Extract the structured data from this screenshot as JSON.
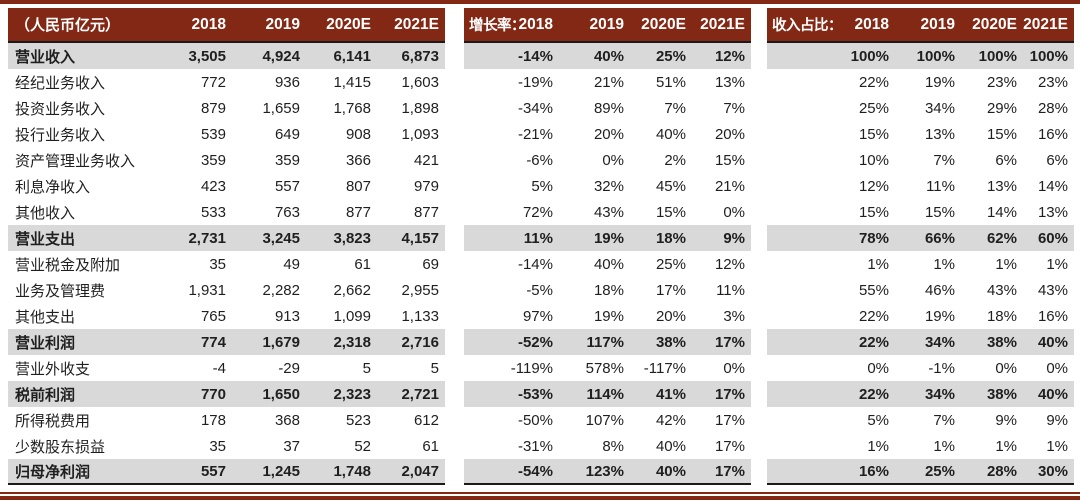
{
  "colors": {
    "header_maroon": "#822814",
    "band_gray": "#d9d9d9",
    "rule_dark": "#1a1a1a",
    "header_text": "#ffffff",
    "body_text": "#1f1f1f"
  },
  "sections": {
    "amounts": {
      "title": "（人民币亿元）",
      "years": [
        "2018",
        "2019",
        "2020E",
        "2021E"
      ]
    },
    "growth": {
      "title": "增长率：",
      "years": [
        "2018",
        "2019",
        "2020E",
        "2021E"
      ]
    },
    "share": {
      "title": "收入占比：",
      "years": [
        "2018",
        "2019",
        "2020E",
        "2021E"
      ]
    }
  },
  "rows": [
    {
      "label": "营业收入",
      "emphasis": true,
      "amounts": [
        "3,505",
        "4,924",
        "6,141",
        "6,873"
      ],
      "growth": [
        "-14%",
        "40%",
        "25%",
        "12%"
      ],
      "share": [
        "100%",
        "100%",
        "100%",
        "100%"
      ]
    },
    {
      "label": "经纪业务收入",
      "emphasis": false,
      "amounts": [
        "772",
        "936",
        "1,415",
        "1,603"
      ],
      "growth": [
        "-19%",
        "21%",
        "51%",
        "13%"
      ],
      "share": [
        "22%",
        "19%",
        "23%",
        "23%"
      ]
    },
    {
      "label": "投资业务收入",
      "emphasis": false,
      "amounts": [
        "879",
        "1,659",
        "1,768",
        "1,898"
      ],
      "growth": [
        "-34%",
        "89%",
        "7%",
        "7%"
      ],
      "share": [
        "25%",
        "34%",
        "29%",
        "28%"
      ]
    },
    {
      "label": "投行业务收入",
      "emphasis": false,
      "amounts": [
        "539",
        "649",
        "908",
        "1,093"
      ],
      "growth": [
        "-21%",
        "20%",
        "40%",
        "20%"
      ],
      "share": [
        "15%",
        "13%",
        "15%",
        "16%"
      ]
    },
    {
      "label": "资产管理业务收入",
      "emphasis": false,
      "amounts": [
        "359",
        "359",
        "366",
        "421"
      ],
      "growth": [
        "-6%",
        "0%",
        "2%",
        "15%"
      ],
      "share": [
        "10%",
        "7%",
        "6%",
        "6%"
      ]
    },
    {
      "label": "利息净收入",
      "emphasis": false,
      "amounts": [
        "423",
        "557",
        "807",
        "979"
      ],
      "growth": [
        "5%",
        "32%",
        "45%",
        "21%"
      ],
      "share": [
        "12%",
        "11%",
        "13%",
        "14%"
      ]
    },
    {
      "label": "其他收入",
      "emphasis": false,
      "amounts": [
        "533",
        "763",
        "877",
        "877"
      ],
      "growth": [
        "72%",
        "43%",
        "15%",
        "0%"
      ],
      "share": [
        "15%",
        "15%",
        "14%",
        "13%"
      ]
    },
    {
      "label": "营业支出",
      "emphasis": true,
      "amounts": [
        "2,731",
        "3,245",
        "3,823",
        "4,157"
      ],
      "growth": [
        "11%",
        "19%",
        "18%",
        "9%"
      ],
      "share": [
        "78%",
        "66%",
        "62%",
        "60%"
      ]
    },
    {
      "label": "营业税金及附加",
      "emphasis": false,
      "amounts": [
        "35",
        "49",
        "61",
        "69"
      ],
      "growth": [
        "-14%",
        "40%",
        "25%",
        "12%"
      ],
      "share": [
        "1%",
        "1%",
        "1%",
        "1%"
      ]
    },
    {
      "label": "业务及管理费",
      "emphasis": false,
      "amounts": [
        "1,931",
        "2,282",
        "2,662",
        "2,955"
      ],
      "growth": [
        "-5%",
        "18%",
        "17%",
        "11%"
      ],
      "share": [
        "55%",
        "46%",
        "43%",
        "43%"
      ]
    },
    {
      "label": "其他支出",
      "emphasis": false,
      "amounts": [
        "765",
        "913",
        "1,099",
        "1,133"
      ],
      "growth": [
        "97%",
        "19%",
        "20%",
        "3%"
      ],
      "share": [
        "22%",
        "19%",
        "18%",
        "16%"
      ]
    },
    {
      "label": "营业利润",
      "emphasis": true,
      "amounts": [
        "774",
        "1,679",
        "2,318",
        "2,716"
      ],
      "growth": [
        "-52%",
        "117%",
        "38%",
        "17%"
      ],
      "share": [
        "22%",
        "34%",
        "38%",
        "40%"
      ]
    },
    {
      "label": "营业外收支",
      "emphasis": false,
      "amounts": [
        "-4",
        "-29",
        "5",
        "5"
      ],
      "growth": [
        "-119%",
        "578%",
        "-117%",
        "0%"
      ],
      "share": [
        "0%",
        "-1%",
        "0%",
        "0%"
      ]
    },
    {
      "label": "税前利润",
      "emphasis": true,
      "amounts": [
        "770",
        "1,650",
        "2,323",
        "2,721"
      ],
      "growth": [
        "-53%",
        "114%",
        "41%",
        "17%"
      ],
      "share": [
        "22%",
        "34%",
        "38%",
        "40%"
      ]
    },
    {
      "label": "所得税费用",
      "emphasis": false,
      "amounts": [
        "178",
        "368",
        "523",
        "612"
      ],
      "growth": [
        "-50%",
        "107%",
        "42%",
        "17%"
      ],
      "share": [
        "5%",
        "7%",
        "9%",
        "9%"
      ]
    },
    {
      "label": "少数股东损益",
      "emphasis": false,
      "amounts": [
        "35",
        "37",
        "52",
        "61"
      ],
      "growth": [
        "-31%",
        "8%",
        "40%",
        "17%"
      ],
      "share": [
        "1%",
        "1%",
        "1%",
        "1%"
      ]
    },
    {
      "label": "归母净利润",
      "emphasis": true,
      "amounts": [
        "557",
        "1,245",
        "1,748",
        "2,047"
      ],
      "growth": [
        "-54%",
        "123%",
        "40%",
        "17%"
      ],
      "share": [
        "16%",
        "25%",
        "28%",
        "30%"
      ]
    }
  ]
}
